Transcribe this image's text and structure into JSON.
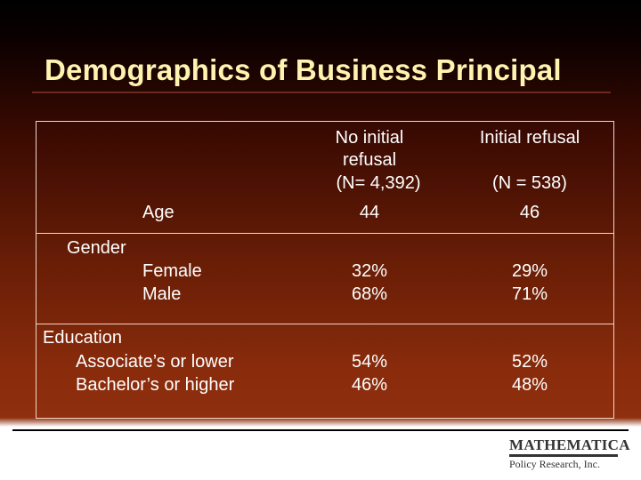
{
  "slide": {
    "title": "Demographics of Business Principal"
  },
  "table": {
    "header": {
      "no_refusal": [
        "No initial",
        "refusal",
        "(N= 4,392)"
      ],
      "refusal_title": "Initial refusal",
      "refusal_n": "(N = 538)"
    },
    "age": {
      "label": "Age",
      "no_refusal": "44",
      "refusal": "46"
    },
    "gender": {
      "label": "Gender",
      "rows": [
        {
          "label": "Female",
          "no_refusal": "32%",
          "refusal": "29%"
        },
        {
          "label": "Male",
          "no_refusal": "68%",
          "refusal": "71%"
        }
      ]
    },
    "education": {
      "label": "Education",
      "rows": [
        {
          "label": "Associate’s or lower",
          "no_refusal": "54%",
          "refusal": "52%"
        },
        {
          "label": "Bachelor’s or higher",
          "no_refusal": "46%",
          "refusal": "48%"
        }
      ]
    }
  },
  "logo": {
    "name": "MATHEMATICA",
    "tagline": "Policy Research, Inc."
  },
  "colors": {
    "title": "#fff3b0",
    "text": "#ffffff",
    "grid": "#f2d6c8"
  }
}
